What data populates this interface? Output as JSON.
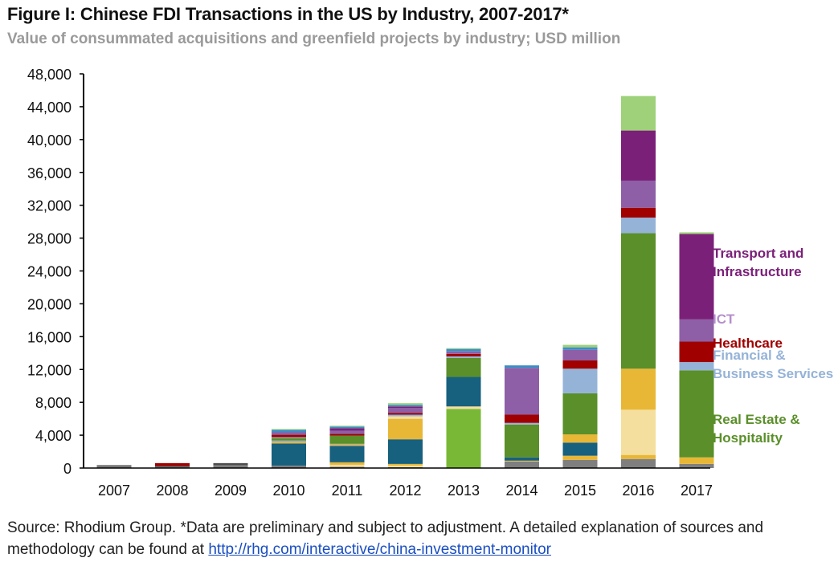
{
  "title": "Figure I: Chinese FDI Transactions in the US by Industry, 2007-2017*",
  "subtitle": "Value of consummated acquisitions and greenfield projects by industry; USD million",
  "source": {
    "text": "Source: Rhodium Group. *Data are preliminary and subject to adjustment. A detailed explanation of sources and methodology can be found at",
    "link": "http://rhg.com/interactive/china-investment-monitor"
  },
  "chart_data": {
    "type": "bar",
    "stacked": true,
    "categories": [
      "2007",
      "2008",
      "2009",
      "2010",
      "2011",
      "2012",
      "2013",
      "2014",
      "2015",
      "2016",
      "2017"
    ],
    "ylim": [
      0,
      48000
    ],
    "yticks": [
      0,
      4000,
      8000,
      12000,
      16000,
      20000,
      24000,
      28000,
      32000,
      36000,
      40000,
      44000,
      48000
    ],
    "ytick_labels": [
      "0",
      "4,000",
      "8,000",
      "12,000",
      "16,000",
      "20,000",
      "24,000",
      "28,000",
      "32,000",
      "36,000",
      "40,000",
      "44,000",
      "48,000"
    ],
    "grid": false,
    "legend_position": "right, labels beside the 2017 stack",
    "series": [
      {
        "key": "gray",
        "color": "#7f7f7f",
        "values": [
          250,
          150,
          350,
          300,
          150,
          100,
          0,
          800,
          1000,
          1100,
          500
        ]
      },
      {
        "key": "light-yellow-a",
        "color": "#f5df9e",
        "values": [
          0,
          0,
          0,
          0,
          250,
          200,
          0,
          0,
          0,
          0,
          0
        ]
      },
      {
        "key": "yellow",
        "color": "#e8b736",
        "values": [
          0,
          0,
          0,
          0,
          300,
          200,
          0,
          100,
          500,
          500,
          800
        ]
      },
      {
        "key": "light-yellow-b",
        "color": "#f5df9e",
        "values": [
          0,
          0,
          0,
          0,
          0,
          0,
          0,
          0,
          0,
          5500,
          0
        ]
      },
      {
        "key": "dark-gray",
        "color": "#4d4d4d",
        "values": [
          100,
          100,
          250,
          0,
          0,
          0,
          0,
          0,
          0,
          0,
          0
        ]
      },
      {
        "key": "teal",
        "color": "#17607e",
        "values": [
          0,
          0,
          0,
          2700,
          2000,
          3000,
          0,
          400,
          1600,
          0,
          0
        ]
      },
      {
        "key": "yellow-b",
        "color": "#e8b736",
        "values": [
          0,
          0,
          0,
          150,
          150,
          2500,
          0,
          0,
          1000,
          5000,
          0
        ]
      },
      {
        "key": "light-yellow-c",
        "color": "#f5df9e",
        "values": [
          0,
          0,
          0,
          0,
          0,
          0,
          0,
          0,
          0,
          0,
          0
        ]
      },
      {
        "key": "lime",
        "color": "#79b837",
        "values": [
          0,
          0,
          0,
          0,
          0,
          0,
          7200,
          0,
          0,
          0,
          0
        ]
      },
      {
        "key": "light-yellow-d",
        "color": "#f5df9e",
        "values": [
          0,
          0,
          0,
          0,
          0,
          300,
          300,
          0,
          0,
          0,
          0
        ]
      },
      {
        "key": "gray-b",
        "color": "#a6a6a6",
        "values": [
          0,
          0,
          0,
          200,
          100,
          0,
          0,
          0,
          0,
          0,
          0
        ]
      },
      {
        "key": "teal-b",
        "color": "#17607e",
        "values": [
          0,
          0,
          0,
          0,
          0,
          0,
          3600,
          0,
          0,
          0,
          0
        ]
      },
      {
        "key": "real-estate",
        "name": "Real Estate & Hospitality",
        "color": "#5a8f29",
        "values": [
          0,
          0,
          0,
          300,
          1000,
          0,
          2300,
          4000,
          5000,
          16500,
          10600
        ]
      },
      {
        "key": "financial",
        "name": "Financial & Business Services",
        "color": "#95b3d7",
        "values": [
          0,
          0,
          0,
          100,
          0,
          200,
          200,
          200,
          3000,
          1900,
          1000
        ]
      },
      {
        "key": "healthcare",
        "name": "Healthcare",
        "color": "#a00000",
        "values": [
          0,
          350,
          0,
          300,
          200,
          200,
          300,
          1000,
          1000,
          1200,
          2500
        ]
      },
      {
        "key": "ict",
        "name": "ICT",
        "color": "#8e5fa6",
        "values": [
          0,
          0,
          0,
          300,
          400,
          600,
          300,
          5700,
          1300,
          3300,
          2700
        ]
      },
      {
        "key": "transport",
        "name": "Transport and Infrastructure",
        "color": "#7b2079",
        "values": [
          0,
          0,
          0,
          0,
          300,
          200,
          0,
          0,
          0,
          6100,
          10400
        ]
      },
      {
        "key": "blue-top",
        "color": "#3c8dc5",
        "values": [
          0,
          0,
          0,
          300,
          200,
          200,
          300,
          300,
          300,
          0,
          0
        ]
      },
      {
        "key": "green-top",
        "color": "#9ed17a",
        "values": [
          0,
          0,
          0,
          100,
          100,
          200,
          100,
          0,
          300,
          4200,
          200
        ]
      }
    ],
    "legend_labels": [
      {
        "key": "transport",
        "lines": [
          "Transport and",
          "Infrastructure"
        ],
        "color": "#7b2079"
      },
      {
        "key": "ict",
        "lines": [
          "ICT"
        ],
        "color": "#b48ecb"
      },
      {
        "key": "healthcare",
        "lines": [
          "Healthcare"
        ],
        "color": "#a00000"
      },
      {
        "key": "financial",
        "lines": [
          "Financial &",
          "Business Services"
        ],
        "color": "#95b3d7"
      },
      {
        "key": "real-estate",
        "lines": [
          "Real Estate &",
          "Hospitality"
        ],
        "color": "#5a8f29"
      }
    ]
  }
}
